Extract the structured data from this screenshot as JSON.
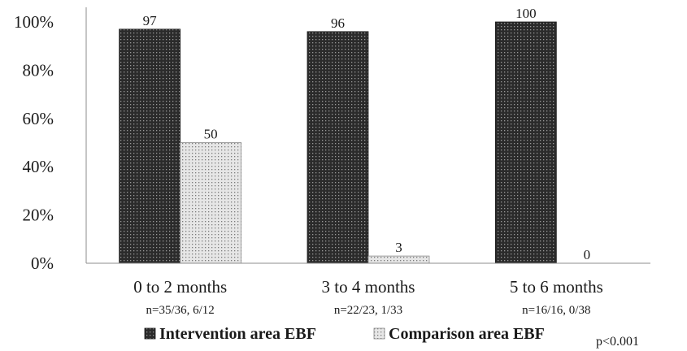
{
  "chart_data": {
    "type": "bar",
    "categories": [
      "0 to 2 months",
      "3 to 4 months",
      "5 to 6 months"
    ],
    "category_sublabels": [
      "n=35/36, 6/12",
      "n=22/23, 1/33",
      "n=16/16, 0/38"
    ],
    "series": [
      {
        "name": "Intervention area EBF",
        "values": [
          97,
          96,
          100
        ],
        "labels": [
          "97",
          "96",
          "100"
        ]
      },
      {
        "name": "Comparison area EBF",
        "values": [
          50,
          3,
          0
        ],
        "labels": [
          "50",
          "3",
          "0"
        ]
      }
    ],
    "ylim": [
      0,
      100
    ],
    "yticks": [
      0,
      20,
      40,
      60,
      80,
      100
    ],
    "ytick_labels": [
      "0%",
      "20%",
      "40%",
      "60%",
      "80%",
      "100%"
    ],
    "grid": false,
    "legend_position": "bottom",
    "annotation": "p<0.001"
  },
  "colors": {
    "intervention_fill": "#2b2b2b",
    "comparison_fill": "#d9d9d9",
    "axis": "#8c8c8c"
  }
}
